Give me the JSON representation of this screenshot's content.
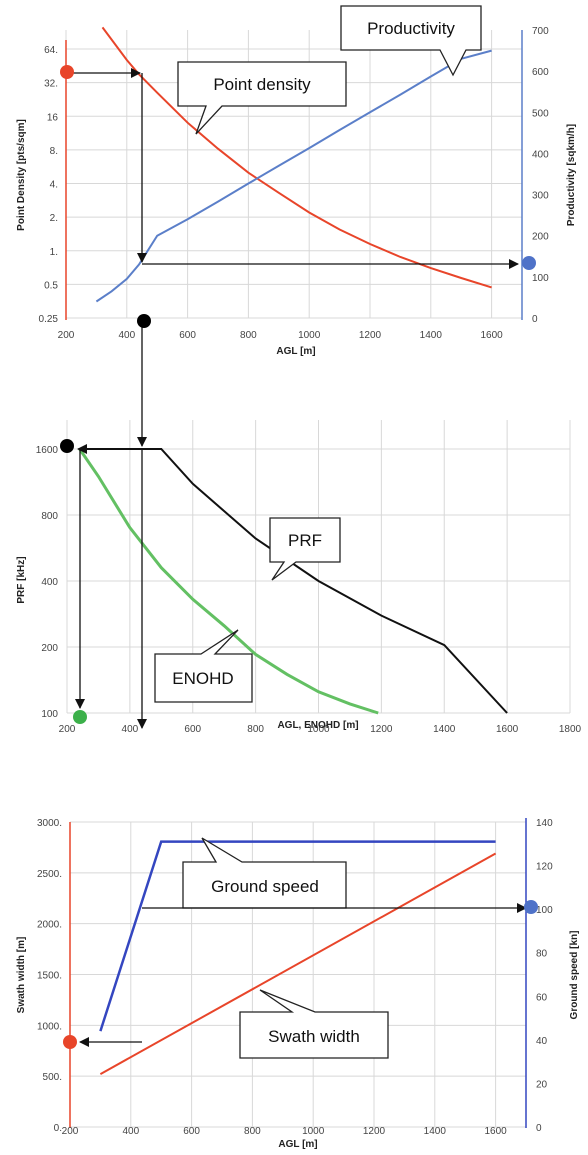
{
  "colors": {
    "density": "#e8452a",
    "productivity": "#5b7fc9",
    "prf": "#111111",
    "enohd": "#63c063",
    "swath": "#e8452a",
    "ground_speed": "#3446c0",
    "grid": "#d8d8d8",
    "arrow": "#111111",
    "dot_red": "#e8452a",
    "dot_blue": "#4f72c8",
    "dot_black": "#000000",
    "dot_green": "#3cb04a"
  },
  "chart_data": [
    {
      "type": "line",
      "xlabel": "AGL [m]",
      "xlim": [
        200,
        1700
      ],
      "x_ticks": [
        "200",
        "400",
        "600",
        "800",
        "1000",
        "1200",
        "1400",
        "1600"
      ],
      "ylabel_left": "Point Density  [pts/sqm]",
      "ylabel_right": "Productivity  [sqkm/h]",
      "y_left_scale": "log2",
      "y_left_lim": [
        0.25,
        96
      ],
      "y_left_ticks": [
        "0.25",
        "0.5",
        "1.",
        "2.",
        "4.",
        "8.",
        "16",
        "32.",
        "64."
      ],
      "y_right_lim": [
        0,
        700
      ],
      "y_right_ticks": [
        "0",
        "100",
        "200",
        "300",
        "400",
        "500",
        "600",
        "700"
      ],
      "grid": true,
      "series": [
        {
          "name": "Point density",
          "axis": "left",
          "x": [
            320,
            400,
            440,
            500,
            600,
            700,
            800,
            900,
            1000,
            1100,
            1200,
            1300,
            1400,
            1500,
            1600
          ],
          "y": [
            100,
            51,
            38,
            26,
            14,
            8.2,
            5.0,
            3.3,
            2.2,
            1.55,
            1.15,
            0.88,
            0.7,
            0.57,
            0.47
          ]
        },
        {
          "name": "Productivity",
          "axis": "right",
          "x": [
            300,
            350,
            400,
            440,
            500,
            600,
            700,
            800,
            900,
            1000,
            1100,
            1200,
            1300,
            1400,
            1500,
            1600
          ],
          "y": [
            40,
            65,
            95,
            130,
            200,
            240,
            283,
            327,
            370,
            413,
            457,
            500,
            543,
            587,
            630,
            650
          ]
        }
      ],
      "annotations": [
        "Point density",
        "Productivity"
      ]
    },
    {
      "type": "line",
      "xlabel": "AGL, ENOHD [m]",
      "xlim": [
        200,
        1800
      ],
      "x_ticks": [
        "200",
        "400",
        "600",
        "800",
        "1000",
        "1200",
        "1400",
        "1600",
        "1800"
      ],
      "ylabel": "PRF [kHz]",
      "y_scale": "log2",
      "ylim": [
        100,
        1800
      ],
      "y_ticks": [
        "100",
        "200",
        "400",
        "800",
        "1600"
      ],
      "grid": true,
      "series": [
        {
          "name": "PRF",
          "x": [
            240,
            500,
            600,
            800,
            1000,
            1200,
            1400,
            1600
          ],
          "y": [
            1600,
            1600,
            1110,
            625,
            400,
            278,
            204,
            100
          ]
        },
        {
          "name": "ENOHD",
          "x": [
            240,
            300,
            400,
            500,
            600,
            700,
            800,
            900,
            1000,
            1100,
            1190
          ],
          "y": [
            1600,
            1200,
            700,
            460,
            330,
            250,
            185,
            150,
            125,
            110,
            100
          ]
        }
      ],
      "annotations": [
        "PRF",
        "ENOHD"
      ]
    },
    {
      "type": "line",
      "xlabel": "AGL [m]",
      "xlim": [
        200,
        1700
      ],
      "x_ticks": [
        "200",
        "400",
        "600",
        "800",
        "1000",
        "1200",
        "1400",
        "1600"
      ],
      "ylabel_left": "Swath width  [m]",
      "ylabel_right": "Ground speed [kn]",
      "y_left_lim": [
        0,
        3000
      ],
      "y_left_ticks": [
        "0.",
        "500.",
        "1000.",
        "1500.",
        "2000.",
        "2500.",
        "3000."
      ],
      "y_right_lim": [
        0,
        140
      ],
      "y_right_ticks": [
        "0",
        "20",
        "40",
        "60",
        "80",
        "100",
        "120",
        "140"
      ],
      "grid": true,
      "series": [
        {
          "name": "Swath width",
          "axis": "left",
          "x": [
            300,
            1600
          ],
          "y": [
            520,
            2690
          ]
        },
        {
          "name": "Ground speed",
          "axis": "right",
          "x": [
            300,
            500,
            1600
          ],
          "y": [
            44,
            131,
            131
          ]
        }
      ],
      "annotations": [
        "Ground speed",
        "Swath width"
      ]
    }
  ]
}
